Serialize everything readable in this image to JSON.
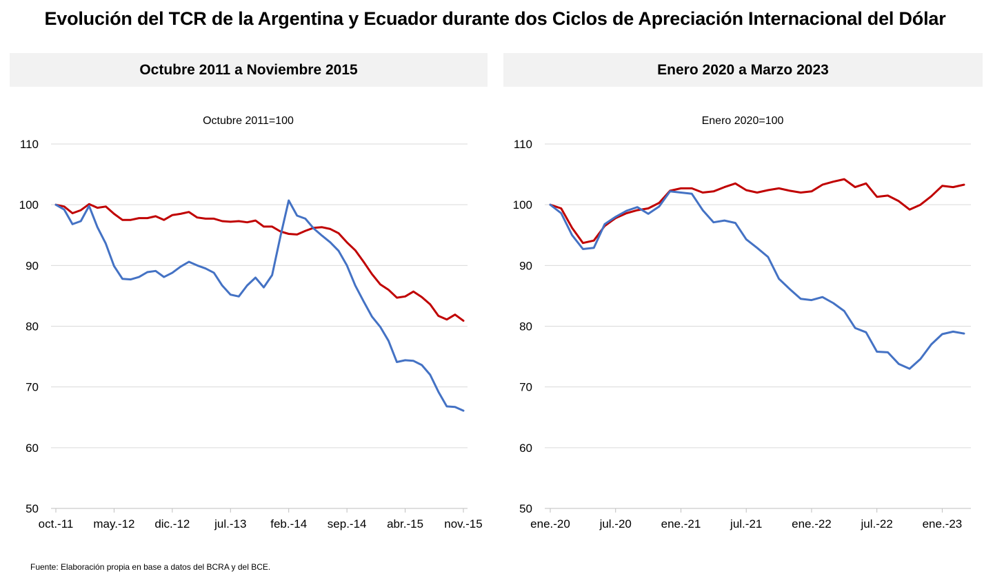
{
  "title": "Evolución del TCR de la Argentina y Ecuador durante dos Ciclos de Apreciación Internacional del Dólar",
  "source": "Fuente: Elaboración propia en base a datos del BCRA y del BCE.",
  "colors": {
    "series_red": "#c00000",
    "series_blue": "#4472c4",
    "grid": "#d9d9d9",
    "panel_bg": "#f2f2f2"
  },
  "chart_data": [
    {
      "type": "line",
      "panel_title": "Octubre 2011 a Noviembre 2015",
      "subtitle": "Octubre 2011=100",
      "ylim": [
        50,
        110
      ],
      "yticks": [
        50,
        60,
        70,
        80,
        90,
        100,
        110
      ],
      "grid": true,
      "x_start": "2011-10",
      "x_end": "2015-11",
      "x_tick_labels": [
        "oct.-11",
        "may.-12",
        "dic.-12",
        "jul.-13",
        "feb.-14",
        "sep.-14",
        "abr.-15",
        "nov.-15"
      ],
      "series": [
        {
          "color": "#c00000",
          "values": [
            100,
            99.7,
            98.6,
            99.1,
            100.1,
            99.5,
            99.7,
            98.5,
            97.5,
            97.5,
            97.8,
            97.8,
            98.1,
            97.5,
            98.3,
            98.5,
            98.8,
            97.9,
            97.7,
            97.7,
            97.3,
            97.2,
            97.3,
            97.1,
            97.4,
            96.4,
            96.4,
            95.6,
            95.2,
            95.1,
            95.7,
            96.2,
            96.3,
            96.0,
            95.3,
            93.8,
            92.5,
            90.6,
            88.6,
            86.9,
            86.0,
            84.7,
            84.9,
            85.7,
            84.8,
            83.6,
            81.7,
            81.1,
            81.9,
            80.9
          ]
        },
        {
          "color": "#4472c4",
          "values": [
            100,
            99.2,
            96.8,
            97.3,
            99.8,
            96.3,
            93.6,
            89.9,
            87.8,
            87.7,
            88.1,
            88.9,
            89.1,
            88.1,
            88.8,
            89.8,
            90.6,
            90.0,
            89.5,
            88.8,
            86.7,
            85.2,
            84.9,
            86.7,
            88.0,
            86.4,
            88.4,
            94.8,
            100.7,
            98.2,
            97.7,
            96.1,
            94.9,
            93.8,
            92.4,
            90.0,
            86.7,
            84.1,
            81.6,
            79.9,
            77.6,
            74.1,
            74.4,
            74.3,
            73.6,
            72.0,
            69.2,
            66.8,
            66.7,
            66.1
          ]
        }
      ]
    },
    {
      "type": "line",
      "panel_title": "Enero 2020 a Marzo 2023",
      "subtitle": "Enero 2020=100",
      "ylim": [
        50,
        110
      ],
      "yticks": [
        50,
        60,
        70,
        80,
        90,
        100,
        110
      ],
      "grid": true,
      "x_start": "2020-01",
      "x_end": "2023-03",
      "x_tick_labels": [
        "ene.-20",
        "jul.-20",
        "ene.-21",
        "jul.-21",
        "ene.-22",
        "jul.-22",
        "ene.-23"
      ],
      "series": [
        {
          "color": "#c00000",
          "values": [
            100,
            99.4,
            96.2,
            93.7,
            94.1,
            96.5,
            97.8,
            98.6,
            99.1,
            99.4,
            100.3,
            102.3,
            102.7,
            102.7,
            102.0,
            102.2,
            102.9,
            103.5,
            102.4,
            102.0,
            102.4,
            102.7,
            102.3,
            102.0,
            102.2,
            103.3,
            103.8,
            104.2,
            102.9,
            103.5,
            101.3,
            101.5,
            100.6,
            99.2,
            100.0,
            101.4,
            103.1,
            102.9,
            103.3
          ]
        },
        {
          "color": "#4472c4",
          "values": [
            100,
            98.6,
            95.0,
            92.7,
            92.9,
            96.8,
            98.0,
            99.0,
            99.6,
            98.5,
            99.7,
            102.2,
            102.0,
            101.8,
            99.1,
            97.1,
            97.4,
            97.0,
            94.3,
            92.9,
            91.4,
            87.8,
            86.1,
            84.5,
            84.3,
            84.8,
            83.8,
            82.5,
            79.7,
            79.0,
            75.8,
            75.7,
            73.8,
            73.0,
            74.6,
            77.0,
            78.7,
            79.1,
            78.8
          ]
        }
      ]
    }
  ]
}
